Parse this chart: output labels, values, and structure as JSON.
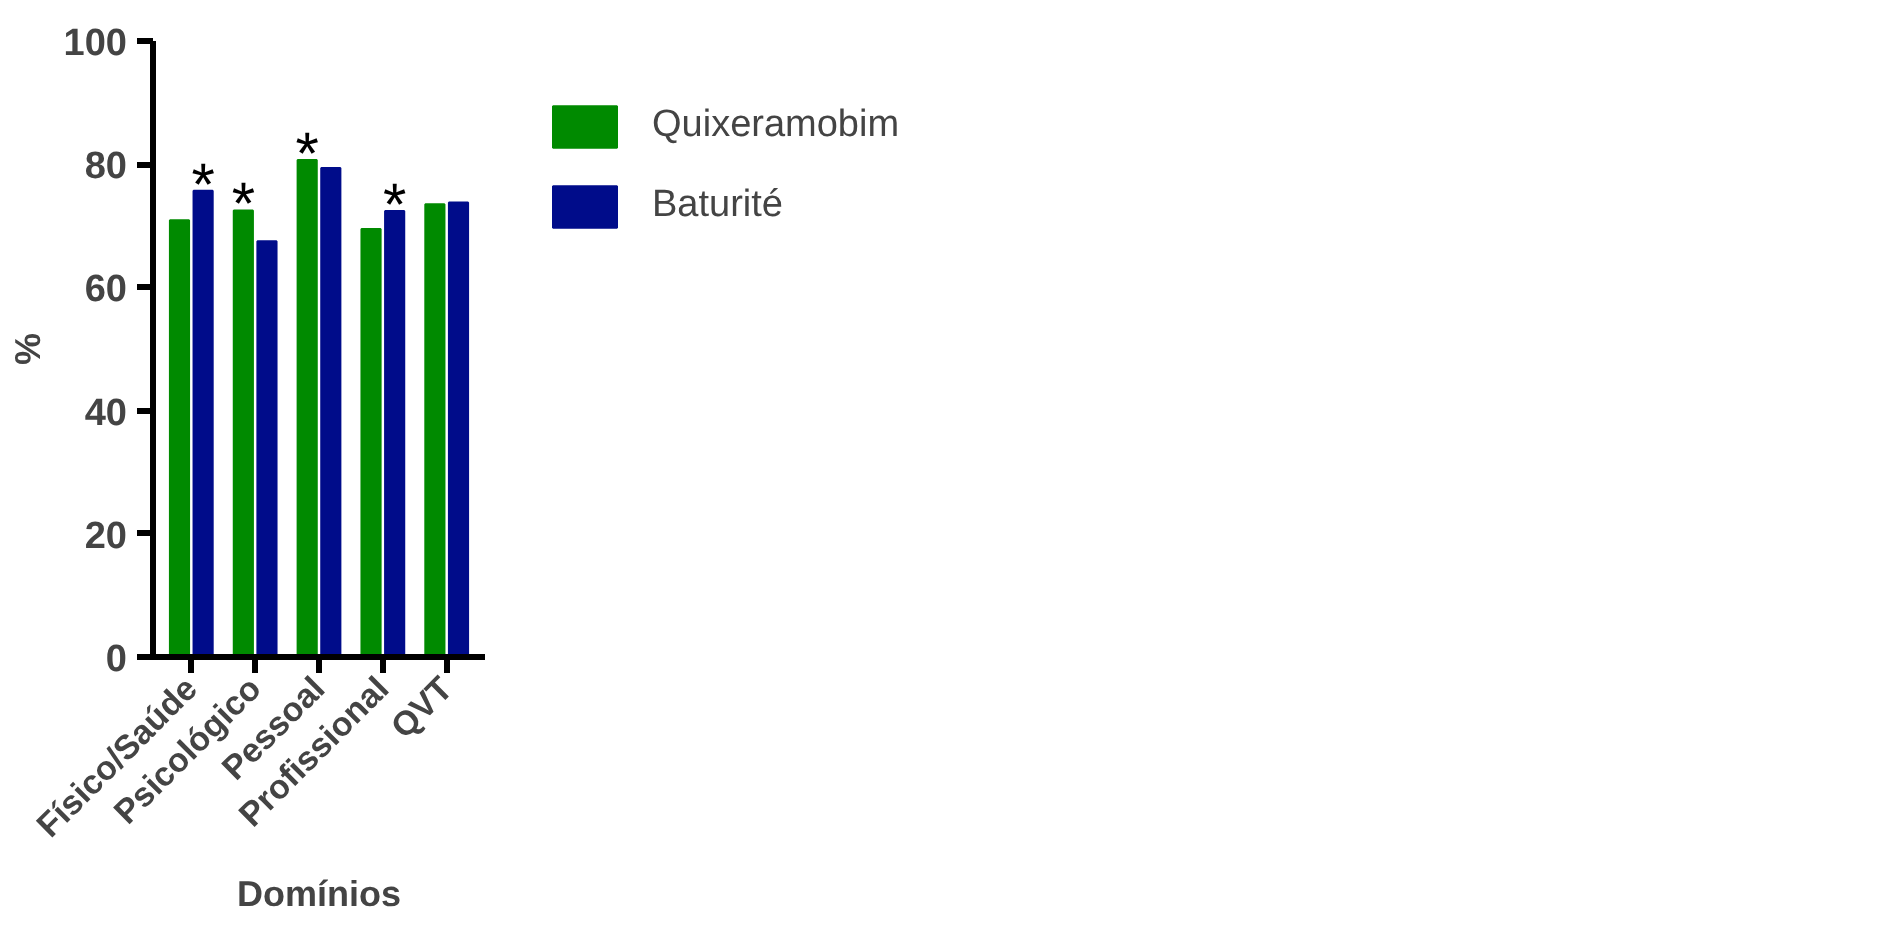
{
  "chart_data": {
    "type": "bar",
    "xlabel": "Domínios",
    "ylabel": "%",
    "categories": [
      "Físico/Saúde",
      "Psicológico",
      "Pessoal",
      "Profissional",
      "QVT"
    ],
    "series": [
      {
        "name": "Quixeramobim",
        "color": "#008a00",
        "values": [
          70.9,
          72.5,
          80.7,
          69.5,
          73.5
        ]
      },
      {
        "name": "Baturité",
        "color": "#000c8a",
        "values": [
          75.7,
          67.5,
          79.4,
          72.4,
          73.8
        ]
      }
    ],
    "ylim": [
      0,
      100
    ],
    "yticks": [
      0,
      20,
      40,
      60,
      80,
      100
    ],
    "grid": false,
    "legend": "right",
    "annotations": [
      {
        "text": "*",
        "x": "Físico/Saúde",
        "y": 75.7
      },
      {
        "text": "*",
        "x": "Psicológico",
        "y": 72.5
      },
      {
        "text": "*",
        "x": "Pessoal",
        "y": 80.7
      },
      {
        "text": "*",
        "x": "Profissional",
        "y": 72.4
      }
    ]
  }
}
